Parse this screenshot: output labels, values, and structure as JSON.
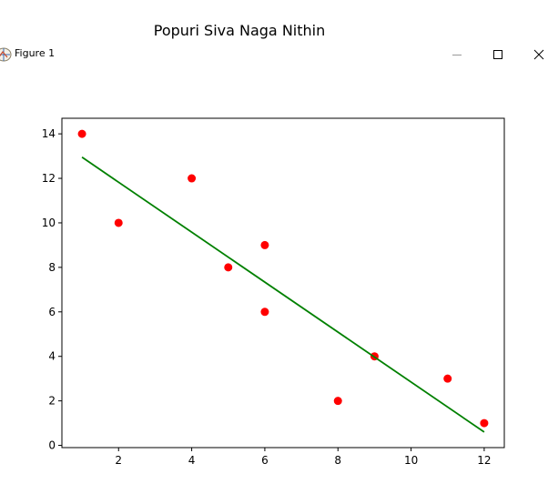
{
  "window": {
    "title": "Figure 1",
    "icons": {
      "app": "figure-app-icon",
      "minimize": "minimize-icon",
      "maximize": "maximize-icon",
      "close": "close-icon"
    }
  },
  "chart_data": {
    "type": "scatter",
    "title": "Popuri Siva Naga Nithin",
    "xlabel": "",
    "ylabel": "",
    "xlim": [
      0.45,
      12.55
    ],
    "ylim": [
      -0.1,
      14.7
    ],
    "xticks": [
      2,
      4,
      6,
      8,
      10,
      12
    ],
    "yticks": [
      0,
      2,
      4,
      6,
      8,
      10,
      12,
      14
    ],
    "grid": false,
    "series": [
      {
        "type": "scatter",
        "color": "#ff0000",
        "points": [
          {
            "x": 1,
            "y": 14
          },
          {
            "x": 2,
            "y": 10
          },
          {
            "x": 4,
            "y": 12
          },
          {
            "x": 5,
            "y": 8
          },
          {
            "x": 6,
            "y": 9
          },
          {
            "x": 6,
            "y": 6
          },
          {
            "x": 8,
            "y": 2
          },
          {
            "x": 9,
            "y": 4
          },
          {
            "x": 11,
            "y": 3
          },
          {
            "x": 12,
            "y": 1
          }
        ]
      },
      {
        "type": "line",
        "color": "#008000",
        "points": [
          {
            "x": 1,
            "y": 12.95
          },
          {
            "x": 12,
            "y": 0.6
          }
        ]
      }
    ]
  }
}
